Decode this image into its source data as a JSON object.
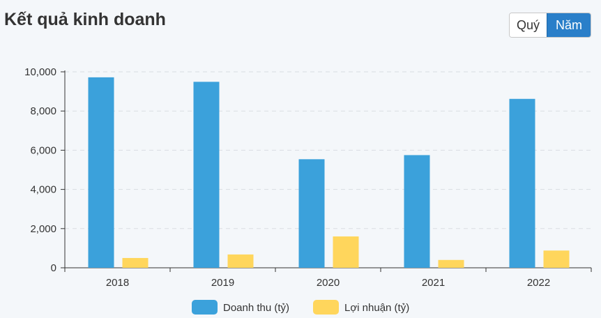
{
  "header": {
    "title": "Kết quả kinh doanh",
    "toggle_quarter": "Quý",
    "toggle_year": "Năm",
    "active": "year"
  },
  "colors": {
    "revenue": "#3ba1db",
    "profit": "#ffd65c",
    "active_button": "#2a7fc9"
  },
  "chart_data": {
    "type": "bar",
    "categories": [
      "2018",
      "2019",
      "2020",
      "2021",
      "2022"
    ],
    "series": [
      {
        "name": "Doanh thu (tỷ)",
        "values": [
          9720,
          9490,
          5540,
          5750,
          8620
        ]
      },
      {
        "name": "Lợi nhuận (tỷ)",
        "values": [
          500,
          680,
          1600,
          400,
          880
        ]
      }
    ],
    "ylim": [
      0,
      10000
    ],
    "yticks": [
      0,
      2000,
      4000,
      6000,
      8000,
      10000
    ],
    "ytick_labels": [
      "0",
      "2,000",
      "4,000",
      "6,000",
      "8,000",
      "10,000"
    ],
    "grid": true,
    "legend_position": "bottom-center"
  }
}
